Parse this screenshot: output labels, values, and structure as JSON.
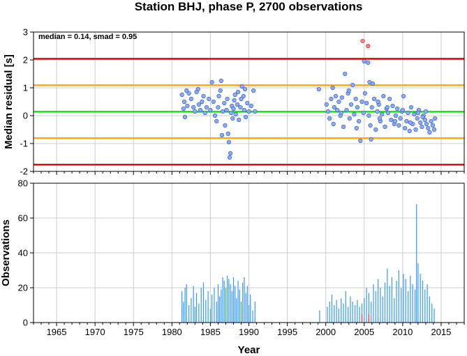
{
  "figure": {
    "title": "Station BHJ, phase P, 2700 observations"
  },
  "chart_data": [
    {
      "type": "scatter",
      "ylabel": "Median residual [s]",
      "xlim": [
        1962,
        2018
      ],
      "ylim": [
        -2,
        3
      ],
      "xticks": [
        1965,
        1970,
        1975,
        1980,
        1985,
        1990,
        1995,
        2000,
        2005,
        2010,
        2015
      ],
      "yticks": [
        -2,
        -1,
        0,
        1,
        2,
        3
      ],
      "grid": true,
      "annotation": "median = 0.14, smad = 0.95",
      "colors": {
        "points": "#88aaff",
        "outliers": "#ff8080",
        "median": "#00ee00",
        "one_smad": "#ffaa00",
        "two_smad": "#ee0000"
      },
      "hlines": [
        {
          "y": 2.04,
          "color": "#ee0000"
        },
        {
          "y": 1.09,
          "color": "#ffaa00"
        },
        {
          "y": 0.14,
          "color": "#00ee00"
        },
        {
          "y": -0.81,
          "color": "#ffaa00"
        },
        {
          "y": -1.76,
          "color": "#ee0000"
        }
      ],
      "series": [
        {
          "points": [
            [
              1981.3,
              0.75
            ],
            [
              1981.5,
              0.25
            ],
            [
              1981.7,
              -0.05
            ],
            [
              1981.9,
              0.9
            ],
            [
              1982.0,
              0.35
            ],
            [
              1981.6,
              0.5
            ],
            [
              1982.2,
              0.8
            ],
            [
              1982.5,
              0.6
            ],
            [
              1982.8,
              0.3
            ],
            [
              1983.0,
              0.15
            ],
            [
              1983.2,
              0.85
            ],
            [
              1983.4,
              0.95
            ],
            [
              1983.5,
              0.4
            ],
            [
              1983.7,
              0.2
            ],
            [
              1983.9,
              0.5
            ],
            [
              1984.1,
              0.7
            ],
            [
              1984.3,
              0.1
            ],
            [
              1984.5,
              0.3
            ],
            [
              1984.8,
              0.6
            ],
            [
              1985.0,
              0.2
            ],
            [
              1985.2,
              1.2
            ],
            [
              1985.4,
              0.5
            ],
            [
              1985.6,
              0.0
            ],
            [
              1985.8,
              -0.2
            ],
            [
              1986.0,
              0.3
            ],
            [
              1986.1,
              0.7
            ],
            [
              1986.3,
              0.9
            ],
            [
              1986.4,
              1.25
            ],
            [
              1986.6,
              0.15
            ],
            [
              1986.8,
              0.45
            ],
            [
              1986.9,
              -0.35
            ],
            [
              1987.1,
              0.2
            ],
            [
              1987.2,
              0.6
            ],
            [
              1987.3,
              -0.65
            ],
            [
              1987.4,
              -0.95
            ],
            [
              1987.5,
              -1.5
            ],
            [
              1987.6,
              -1.35
            ],
            [
              1987.7,
              0.1
            ],
            [
              1987.8,
              0.35
            ],
            [
              1987.9,
              -0.1
            ],
            [
              1988.0,
              0.25
            ],
            [
              1988.1,
              0.55
            ],
            [
              1988.2,
              0.75
            ],
            [
              1988.3,
              0.05
            ],
            [
              1988.5,
              0.4
            ],
            [
              1988.6,
              0.85
            ],
            [
              1988.7,
              -0.15
            ],
            [
              1988.9,
              0.3
            ],
            [
              1989.0,
              0.6
            ],
            [
              1989.1,
              1.05
            ],
            [
              1989.3,
              0.7
            ],
            [
              1989.4,
              0.2
            ],
            [
              1989.5,
              0.95
            ],
            [
              1989.6,
              -0.05
            ],
            [
              1989.8,
              0.45
            ],
            [
              1990.0,
              0.15
            ],
            [
              1990.3,
              0.35
            ],
            [
              1990.6,
              0.9
            ],
            [
              1990.8,
              0.15
            ],
            [
              1986.5,
              -0.7
            ],
            [
              1999.1,
              0.95
            ],
            [
              2000.1,
              0.4
            ],
            [
              2000.3,
              0.15
            ],
            [
              2000.5,
              -0.1
            ],
            [
              2000.7,
              0.6
            ],
            [
              2000.9,
              1.0
            ],
            [
              2001.1,
              0.3
            ],
            [
              2001.3,
              0.7
            ],
            [
              2001.5,
              0.2
            ],
            [
              2001.7,
              0.5
            ],
            [
              2001.9,
              0.0
            ],
            [
              2002.1,
              0.65
            ],
            [
              2002.3,
              -0.4
            ],
            [
              2002.5,
              1.5
            ],
            [
              2002.7,
              0.2
            ],
            [
              2002.9,
              0.8
            ],
            [
              2003.1,
              -0.1
            ],
            [
              2003.3,
              0.4
            ],
            [
              2003.5,
              1.1
            ],
            [
              2003.7,
              0.05
            ],
            [
              2003.9,
              0.6
            ],
            [
              2004.1,
              0.3
            ],
            [
              2004.3,
              -0.2
            ],
            [
              2004.5,
              -0.9
            ],
            [
              2004.7,
              0.5
            ],
            [
              2004.9,
              0.1
            ],
            [
              2005.0,
              1.95
            ],
            [
              2005.1,
              0.8
            ],
            [
              2005.3,
              0.45
            ],
            [
              2005.5,
              1.9
            ],
            [
              2005.6,
              0.0
            ],
            [
              2005.7,
              1.2
            ],
            [
              2005.9,
              -0.85
            ],
            [
              2006.0,
              0.3
            ],
            [
              2006.1,
              1.15
            ],
            [
              2006.3,
              0.6
            ],
            [
              2006.5,
              -0.5
            ],
            [
              2006.7,
              0.15
            ],
            [
              2006.9,
              0.4
            ],
            [
              2007.1,
              -0.2
            ],
            [
              2007.3,
              0.05
            ],
            [
              2007.5,
              0.7
            ],
            [
              2007.7,
              -0.4
            ],
            [
              2007.9,
              0.25
            ],
            [
              2008.1,
              0.1
            ],
            [
              2008.3,
              0.6
            ],
            [
              2008.5,
              -0.15
            ],
            [
              2008.7,
              0.35
            ],
            [
              2008.9,
              -0.3
            ],
            [
              2009.1,
              0.0
            ],
            [
              2009.3,
              0.25
            ],
            [
              2009.5,
              -0.35
            ],
            [
              2009.7,
              -0.1
            ],
            [
              2009.9,
              0.15
            ],
            [
              2010.1,
              0.7
            ],
            [
              2010.3,
              -0.45
            ],
            [
              2010.5,
              -0.2
            ],
            [
              2010.7,
              0.1
            ],
            [
              2010.9,
              -0.55
            ],
            [
              2011.1,
              0.3
            ],
            [
              2011.3,
              -0.3
            ],
            [
              2011.5,
              0.05
            ],
            [
              2011.7,
              -0.5
            ],
            [
              2011.9,
              -0.1
            ],
            [
              2012.1,
              0.2
            ],
            [
              2012.3,
              -0.25
            ],
            [
              2012.5,
              -0.4
            ],
            [
              2012.7,
              0.0
            ],
            [
              2012.9,
              -0.15
            ],
            [
              2013.1,
              -0.3
            ],
            [
              2013.3,
              -0.45
            ],
            [
              2013.5,
              -0.6
            ],
            [
              2013.7,
              -0.2
            ],
            [
              2013.9,
              -0.35
            ],
            [
              2014.1,
              -0.5
            ],
            [
              2014.2,
              -0.1
            ],
            [
              2002.0,
              0.1
            ],
            [
              2003.0,
              0.9
            ],
            [
              2006.8,
              0.5
            ],
            [
              2008.0,
              0.3
            ],
            [
              2009.0,
              -0.2
            ],
            [
              2010.0,
              0.2
            ],
            [
              2011.0,
              -0.25
            ],
            [
              2012.0,
              0.1
            ],
            [
              2013.0,
              0.15
            ],
            [
              2004.0,
              -0.45
            ],
            [
              2001.0,
              -0.3
            ],
            [
              2007.0,
              -0.1
            ],
            [
              2005.8,
              -0.35
            ],
            [
              2012.6,
              -0.05
            ]
          ]
        },
        {
          "points": [
            [
              2004.8,
              2.68
            ],
            [
              2005.5,
              2.5
            ]
          ]
        }
      ]
    },
    {
      "type": "bar",
      "xlabel": "Year",
      "ylabel": "Observations",
      "xlim": [
        1962,
        2018
      ],
      "ylim": [
        0,
        80
      ],
      "xticks": [
        1965,
        1970,
        1975,
        1980,
        1985,
        1990,
        1995,
        2000,
        2005,
        2010,
        2015
      ],
      "yticks": [
        0,
        20,
        40,
        60,
        80
      ],
      "grid": true,
      "colors": {
        "bars": "#3399ff",
        "highlight": "#ee3333"
      },
      "bars": [
        [
          1981.3,
          18
        ],
        [
          1981.5,
          12
        ],
        [
          1981.7,
          20
        ],
        [
          1981.9,
          22
        ],
        [
          1982.2,
          10
        ],
        [
          1982.5,
          14
        ],
        [
          1982.8,
          21
        ],
        [
          1983.0,
          9
        ],
        [
          1983.2,
          17
        ],
        [
          1983.5,
          11
        ],
        [
          1983.8,
          20
        ],
        [
          1984.1,
          23
        ],
        [
          1984.4,
          13
        ],
        [
          1984.7,
          18
        ],
        [
          1985.0,
          8
        ],
        [
          1985.2,
          16
        ],
        [
          1985.5,
          20
        ],
        [
          1985.8,
          12
        ],
        [
          1986.0,
          22
        ],
        [
          1986.2,
          15
        ],
        [
          1986.4,
          19
        ],
        [
          1986.6,
          26
        ],
        [
          1986.8,
          24
        ],
        [
          1987.0,
          20
        ],
        [
          1987.2,
          27
        ],
        [
          1987.4,
          25
        ],
        [
          1987.6,
          22
        ],
        [
          1987.8,
          18
        ],
        [
          1988.0,
          26
        ],
        [
          1988.2,
          21
        ],
        [
          1988.4,
          14
        ],
        [
          1988.6,
          24
        ],
        [
          1988.8,
          19
        ],
        [
          1989.0,
          12
        ],
        [
          1989.2,
          23
        ],
        [
          1989.4,
          26
        ],
        [
          1989.6,
          17
        ],
        [
          1989.8,
          21
        ],
        [
          1990.0,
          10
        ],
        [
          1990.2,
          16
        ],
        [
          1990.5,
          7
        ],
        [
          1990.8,
          12
        ],
        [
          1999.2,
          7
        ],
        [
          2000.2,
          9
        ],
        [
          2000.5,
          12
        ],
        [
          2000.8,
          16
        ],
        [
          2001.1,
          10
        ],
        [
          2001.4,
          13
        ],
        [
          2001.7,
          8
        ],
        [
          2002.0,
          14
        ],
        [
          2002.3,
          11
        ],
        [
          2002.6,
          18
        ],
        [
          2002.9,
          9
        ],
        [
          2003.2,
          15
        ],
        [
          2003.5,
          12
        ],
        [
          2003.8,
          10
        ],
        [
          2004.1,
          13
        ],
        [
          2004.4,
          9
        ],
        [
          2004.7,
          11
        ],
        [
          2005.0,
          14
        ],
        [
          2005.3,
          20
        ],
        [
          2005.6,
          17
        ],
        [
          2005.9,
          12
        ],
        [
          2006.2,
          22
        ],
        [
          2006.5,
          18
        ],
        [
          2006.8,
          25
        ],
        [
          2007.1,
          20
        ],
        [
          2007.4,
          15
        ],
        [
          2007.7,
          23
        ],
        [
          2008.0,
          31
        ],
        [
          2008.3,
          21
        ],
        [
          2008.6,
          26
        ],
        [
          2008.9,
          14
        ],
        [
          2009.2,
          24
        ],
        [
          2009.5,
          30
        ],
        [
          2009.8,
          20
        ],
        [
          2010.1,
          28
        ],
        [
          2010.4,
          25
        ],
        [
          2010.7,
          18
        ],
        [
          2011.0,
          27
        ],
        [
          2011.3,
          22
        ],
        [
          2011.6,
          19
        ],
        [
          2011.8,
          68
        ],
        [
          2012.0,
          34
        ],
        [
          2012.3,
          28
        ],
        [
          2012.6,
          24
        ],
        [
          2012.9,
          19
        ],
        [
          2013.2,
          22
        ],
        [
          2013.5,
          15
        ],
        [
          2013.8,
          11
        ],
        [
          2014.1,
          8
        ]
      ],
      "highlight_bars": [
        [
          2004.7,
          5
        ],
        [
          2005.6,
          5
        ]
      ]
    }
  ]
}
